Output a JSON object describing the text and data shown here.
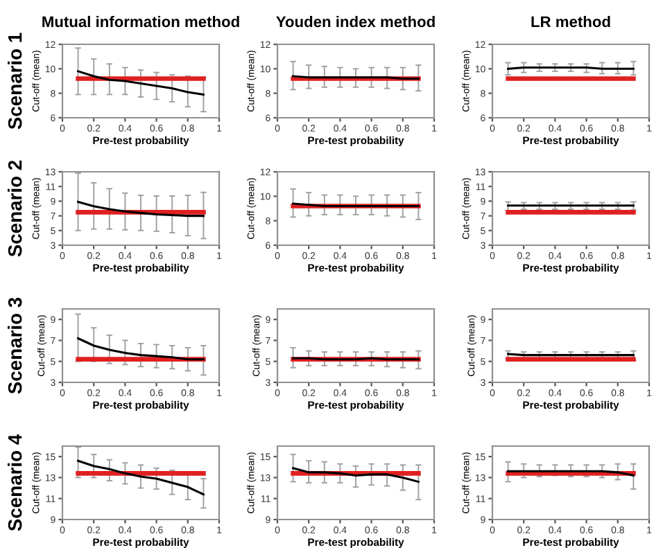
{
  "chart_data": [
    {
      "type": "line",
      "title": "Mutual information method",
      "annotations": [
        "Scenario 1"
      ],
      "xlabel": "Pre-test probability",
      "ylabel": "Cut-off (mean)",
      "x": [
        0.1,
        0.2,
        0.3,
        0.4,
        0.5,
        0.6,
        0.7,
        0.8,
        0.9
      ],
      "xlim": [
        0,
        1
      ],
      "xticks": [
        0,
        0.2,
        0.4,
        0.6,
        0.8,
        1
      ],
      "ylim": [
        6,
        12
      ],
      "yticks": [
        6,
        8,
        10,
        12
      ],
      "grid": false,
      "marker": "none",
      "line_style": "solid",
      "series": [
        {
          "color": "#000000",
          "values": [
            9.8,
            9.4,
            9.1,
            9.0,
            8.8,
            8.6,
            8.4,
            8.1,
            7.9
          ],
          "errors": [
            [
              7.9,
              11.7
            ],
            [
              7.9,
              10.8
            ],
            [
              7.9,
              10.4
            ],
            [
              7.9,
              10.1
            ],
            [
              7.7,
              9.9
            ],
            [
              7.5,
              9.7
            ],
            [
              7.3,
              9.5
            ],
            [
              6.9,
              9.4
            ],
            [
              6.5,
              9.3
            ]
          ]
        },
        {
          "color": "#e02020",
          "values": [
            9.2,
            9.2,
            9.2,
            9.2,
            9.2,
            9.2,
            9.2,
            9.2,
            9.2
          ]
        }
      ]
    },
    {
      "type": "line",
      "title": "Youden index method",
      "xlabel": "Pre-test probability",
      "ylabel": "Cut-off (mean)",
      "x": [
        0.1,
        0.2,
        0.3,
        0.4,
        0.5,
        0.6,
        0.7,
        0.8,
        0.9
      ],
      "xlim": [
        0,
        1
      ],
      "xticks": [
        0,
        0.2,
        0.4,
        0.6,
        0.8,
        1
      ],
      "ylim": [
        6,
        12
      ],
      "yticks": [
        6,
        8,
        10,
        12
      ],
      "grid": false,
      "marker": "none",
      "line_style": "solid",
      "series": [
        {
          "color": "#000000",
          "values": [
            9.4,
            9.3,
            9.3,
            9.3,
            9.3,
            9.3,
            9.3,
            9.2,
            9.2
          ],
          "errors": [
            [
              8.3,
              10.6
            ],
            [
              8.4,
              10.3
            ],
            [
              8.5,
              10.2
            ],
            [
              8.5,
              10.1
            ],
            [
              8.5,
              10.0
            ],
            [
              8.5,
              10.1
            ],
            [
              8.4,
              10.1
            ],
            [
              8.3,
              10.1
            ],
            [
              8.2,
              10.3
            ]
          ]
        },
        {
          "color": "#e02020",
          "values": [
            9.2,
            9.2,
            9.2,
            9.2,
            9.2,
            9.2,
            9.2,
            9.2,
            9.2
          ]
        }
      ]
    },
    {
      "type": "line",
      "title": "LR method",
      "xlabel": "Pre-test probability",
      "ylabel": "Cut-off (mean)",
      "x": [
        0.1,
        0.2,
        0.3,
        0.4,
        0.5,
        0.6,
        0.7,
        0.8,
        0.9
      ],
      "xlim": [
        0,
        1
      ],
      "xticks": [
        0,
        0.2,
        0.4,
        0.6,
        0.8,
        1
      ],
      "ylim": [
        6,
        12
      ],
      "yticks": [
        6,
        8,
        10,
        12
      ],
      "grid": false,
      "marker": "none",
      "line_style": "solid",
      "series": [
        {
          "color": "#000000",
          "values": [
            10.0,
            10.1,
            10.1,
            10.1,
            10.1,
            10.1,
            10.0,
            10.0,
            10.0
          ],
          "errors": [
            [
              9.5,
              10.5
            ],
            [
              9.7,
              10.5
            ],
            [
              9.8,
              10.4
            ],
            [
              9.8,
              10.4
            ],
            [
              9.8,
              10.4
            ],
            [
              9.7,
              10.4
            ],
            [
              9.6,
              10.5
            ],
            [
              9.6,
              10.5
            ],
            [
              9.5,
              10.6
            ]
          ]
        },
        {
          "color": "#e02020",
          "values": [
            9.2,
            9.2,
            9.2,
            9.2,
            9.2,
            9.2,
            9.2,
            9.2,
            9.2
          ]
        }
      ]
    },
    {
      "type": "line",
      "annotations": [
        "Scenario 2"
      ],
      "xlabel": "Pre-test probability",
      "ylabel": "Cut-off (mean)",
      "x": [
        0.1,
        0.2,
        0.3,
        0.4,
        0.5,
        0.6,
        0.7,
        0.8,
        0.9
      ],
      "xlim": [
        0,
        1
      ],
      "xticks": [
        0,
        0.2,
        0.4,
        0.6,
        0.8,
        1
      ],
      "ylim": [
        3,
        13
      ],
      "yticks": [
        3,
        5,
        7,
        9,
        11,
        13
      ],
      "grid": false,
      "marker": "none",
      "line_style": "solid",
      "series": [
        {
          "color": "#000000",
          "values": [
            8.9,
            8.3,
            7.9,
            7.6,
            7.4,
            7.2,
            7.1,
            7.0,
            7.0
          ],
          "errors": [
            [
              5.0,
              12.8
            ],
            [
              5.2,
              11.5
            ],
            [
              5.2,
              10.7
            ],
            [
              5.1,
              10.1
            ],
            [
              5.0,
              9.8
            ],
            [
              4.9,
              9.7
            ],
            [
              4.7,
              9.7
            ],
            [
              4.3,
              9.8
            ],
            [
              3.9,
              10.2
            ]
          ]
        },
        {
          "color": "#e02020",
          "values": [
            7.5,
            7.5,
            7.5,
            7.5,
            7.5,
            7.5,
            7.5,
            7.5,
            7.5
          ]
        }
      ]
    },
    {
      "type": "line",
      "xlabel": "Pre-test probability",
      "ylabel": "Cut-off (mean)",
      "x": [
        0.1,
        0.2,
        0.3,
        0.4,
        0.5,
        0.6,
        0.7,
        0.8,
        0.9
      ],
      "xlim": [
        0,
        1
      ],
      "xticks": [
        0,
        0.2,
        0.4,
        0.6,
        0.8,
        1
      ],
      "ylim": [
        6,
        12
      ],
      "yticks": [
        6,
        8,
        10,
        12
      ],
      "grid": false,
      "marker": "none",
      "line_style": "solid",
      "series": [
        {
          "color": "#000000",
          "values": [
            9.4,
            9.3,
            9.2,
            9.2,
            9.2,
            9.2,
            9.2,
            9.2,
            9.2
          ],
          "errors": [
            [
              8.3,
              10.6
            ],
            [
              8.4,
              10.3
            ],
            [
              8.5,
              10.1
            ],
            [
              8.5,
              10.1
            ],
            [
              8.5,
              10.0
            ],
            [
              8.5,
              10.1
            ],
            [
              8.4,
              10.1
            ],
            [
              8.3,
              10.1
            ],
            [
              8.1,
              10.3
            ]
          ]
        },
        {
          "color": "#e02020",
          "values": [
            9.2,
            9.2,
            9.2,
            9.2,
            9.2,
            9.2,
            9.2,
            9.2,
            9.2
          ]
        }
      ]
    },
    {
      "type": "line",
      "xlabel": "Pre-test probability",
      "ylabel": "Cut-off (mean)",
      "x": [
        0.1,
        0.2,
        0.3,
        0.4,
        0.5,
        0.6,
        0.7,
        0.8,
        0.9
      ],
      "xlim": [
        0,
        1
      ],
      "xticks": [
        0,
        0.2,
        0.4,
        0.6,
        0.8,
        1
      ],
      "ylim": [
        3,
        13
      ],
      "yticks": [
        3,
        5,
        7,
        9,
        11,
        13
      ],
      "grid": false,
      "marker": "none",
      "line_style": "solid",
      "series": [
        {
          "color": "#000000",
          "values": [
            8.4,
            8.4,
            8.4,
            8.4,
            8.4,
            8.4,
            8.4,
            8.4,
            8.4
          ],
          "errors": [
            [
              7.7,
              8.9
            ],
            [
              7.9,
              8.8
            ],
            [
              7.9,
              8.8
            ],
            [
              7.9,
              8.8
            ],
            [
              7.9,
              8.8
            ],
            [
              7.9,
              8.8
            ],
            [
              7.9,
              8.8
            ],
            [
              7.9,
              8.8
            ],
            [
              7.8,
              8.9
            ]
          ]
        },
        {
          "color": "#e02020",
          "values": [
            7.5,
            7.5,
            7.5,
            7.5,
            7.5,
            7.5,
            7.5,
            7.5,
            7.5
          ]
        }
      ]
    },
    {
      "type": "line",
      "annotations": [
        "Scenario 3"
      ],
      "xlabel": "Pre-test probability",
      "ylabel": "Cut-off (mean)",
      "x": [
        0.1,
        0.2,
        0.3,
        0.4,
        0.5,
        0.6,
        0.7,
        0.8,
        0.9
      ],
      "xlim": [
        0,
        1
      ],
      "xticks": [
        0,
        0.2,
        0.4,
        0.6,
        0.8,
        1
      ],
      "ylim": [
        3,
        10
      ],
      "yticks": [
        3,
        5,
        7,
        9
      ],
      "grid": false,
      "marker": "none",
      "line_style": "solid",
      "series": [
        {
          "color": "#000000",
          "values": [
            7.2,
            6.5,
            6.1,
            5.8,
            5.6,
            5.5,
            5.4,
            5.2,
            5.2
          ],
          "errors": [
            [
              5.0,
              9.5
            ],
            [
              5.0,
              8.2
            ],
            [
              4.8,
              7.5
            ],
            [
              4.7,
              7.0
            ],
            [
              4.5,
              6.7
            ],
            [
              4.4,
              6.6
            ],
            [
              4.3,
              6.5
            ],
            [
              4.1,
              6.3
            ],
            [
              3.7,
              6.5
            ]
          ]
        },
        {
          "color": "#e02020",
          "values": [
            5.2,
            5.2,
            5.2,
            5.2,
            5.2,
            5.2,
            5.2,
            5.2,
            5.2
          ]
        }
      ]
    },
    {
      "type": "line",
      "xlabel": "Pre-test probability",
      "ylabel": "Cut-off (mean)",
      "x": [
        0.1,
        0.2,
        0.3,
        0.4,
        0.5,
        0.6,
        0.7,
        0.8,
        0.9
      ],
      "xlim": [
        0,
        1
      ],
      "xticks": [
        0,
        0.2,
        0.4,
        0.6,
        0.8,
        1
      ],
      "ylim": [
        3,
        10
      ],
      "yticks": [
        3,
        5,
        7,
        9
      ],
      "grid": false,
      "marker": "none",
      "line_style": "solid",
      "series": [
        {
          "color": "#000000",
          "values": [
            5.3,
            5.3,
            5.2,
            5.2,
            5.2,
            5.3,
            5.2,
            5.2,
            5.2
          ],
          "errors": [
            [
              4.4,
              6.3
            ],
            [
              4.6,
              6.0
            ],
            [
              4.6,
              5.9
            ],
            [
              4.6,
              5.9
            ],
            [
              4.6,
              5.9
            ],
            [
              4.6,
              5.9
            ],
            [
              4.5,
              5.9
            ],
            [
              4.4,
              5.9
            ],
            [
              4.3,
              6.0
            ]
          ]
        },
        {
          "color": "#e02020",
          "values": [
            5.2,
            5.2,
            5.2,
            5.2,
            5.2,
            5.2,
            5.2,
            5.2,
            5.2
          ]
        }
      ]
    },
    {
      "type": "line",
      "xlabel": "Pre-test probability",
      "ylabel": "Cut-off (mean)",
      "x": [
        0.1,
        0.2,
        0.3,
        0.4,
        0.5,
        0.6,
        0.7,
        0.8,
        0.9
      ],
      "xlim": [
        0,
        1
      ],
      "xticks": [
        0,
        0.2,
        0.4,
        0.6,
        0.8,
        1
      ],
      "ylim": [
        3,
        10
      ],
      "yticks": [
        3,
        5,
        7,
        9
      ],
      "grid": false,
      "marker": "none",
      "line_style": "solid",
      "series": [
        {
          "color": "#000000",
          "values": [
            5.7,
            5.6,
            5.6,
            5.6,
            5.6,
            5.6,
            5.6,
            5.6,
            5.6
          ],
          "errors": [
            [
              5.3,
              6.0
            ],
            [
              5.3,
              5.9
            ],
            [
              5.3,
              5.9
            ],
            [
              5.3,
              5.9
            ],
            [
              5.3,
              5.9
            ],
            [
              5.3,
              5.9
            ],
            [
              5.3,
              5.9
            ],
            [
              5.2,
              5.9
            ],
            [
              5.1,
              6.0
            ]
          ]
        },
        {
          "color": "#e02020",
          "values": [
            5.2,
            5.2,
            5.2,
            5.2,
            5.2,
            5.2,
            5.2,
            5.2,
            5.2
          ]
        }
      ]
    },
    {
      "type": "line",
      "annotations": [
        "Scenario 4"
      ],
      "xlabel": "Pre-test probability",
      "ylabel": "Cut-off (mean)",
      "x": [
        0.1,
        0.2,
        0.3,
        0.4,
        0.5,
        0.6,
        0.7,
        0.8,
        0.9
      ],
      "xlim": [
        0,
        1
      ],
      "xticks": [
        0,
        0.2,
        0.4,
        0.6,
        0.8,
        1
      ],
      "ylim": [
        9,
        16
      ],
      "yticks": [
        9,
        11,
        13,
        15
      ],
      "grid": false,
      "marker": "none",
      "line_style": "solid",
      "series": [
        {
          "color": "#000000",
          "values": [
            14.6,
            14.1,
            13.8,
            13.4,
            13.1,
            12.9,
            12.5,
            12.1,
            11.4
          ],
          "errors": [
            [
              13.0,
              15.9
            ],
            [
              13.0,
              15.2
            ],
            [
              12.7,
              14.7
            ],
            [
              12.4,
              14.4
            ],
            [
              12.0,
              14.2
            ],
            [
              11.9,
              13.9
            ],
            [
              11.4,
              13.7
            ],
            [
              10.9,
              13.5
            ],
            [
              10.1,
              12.9
            ]
          ]
        },
        {
          "color": "#e02020",
          "values": [
            13.4,
            13.4,
            13.4,
            13.4,
            13.4,
            13.4,
            13.4,
            13.4,
            13.4
          ]
        }
      ]
    },
    {
      "type": "line",
      "xlabel": "Pre-test probability",
      "ylabel": "Cut-off (mean)",
      "x": [
        0.1,
        0.2,
        0.3,
        0.4,
        0.5,
        0.6,
        0.7,
        0.8,
        0.9
      ],
      "xlim": [
        0,
        1
      ],
      "xticks": [
        0,
        0.2,
        0.4,
        0.6,
        0.8,
        1
      ],
      "ylim": [
        9,
        16
      ],
      "yticks": [
        9,
        11,
        13,
        15
      ],
      "grid": false,
      "marker": "none",
      "line_style": "solid",
      "series": [
        {
          "color": "#000000",
          "values": [
            13.9,
            13.5,
            13.5,
            13.4,
            13.2,
            13.3,
            13.3,
            13.0,
            12.6
          ],
          "errors": [
            [
              12.6,
              15.2
            ],
            [
              12.5,
              14.6
            ],
            [
              12.5,
              14.5
            ],
            [
              12.5,
              14.3
            ],
            [
              12.1,
              14.1
            ],
            [
              12.3,
              14.3
            ],
            [
              12.2,
              14.3
            ],
            [
              11.8,
              14.2
            ],
            [
              10.9,
              14.2
            ]
          ]
        },
        {
          "color": "#e02020",
          "values": [
            13.4,
            13.4,
            13.4,
            13.4,
            13.4,
            13.4,
            13.4,
            13.4,
            13.4
          ]
        }
      ]
    },
    {
      "type": "line",
      "xlabel": "Pre-test probability",
      "ylabel": "Cut-off (mean)",
      "x": [
        0.1,
        0.2,
        0.3,
        0.4,
        0.5,
        0.6,
        0.7,
        0.8,
        0.9
      ],
      "xlim": [
        0,
        1
      ],
      "xticks": [
        0,
        0.2,
        0.4,
        0.6,
        0.8,
        1
      ],
      "ylim": [
        9,
        16
      ],
      "yticks": [
        9,
        11,
        13,
        15
      ],
      "grid": false,
      "marker": "none",
      "line_style": "solid",
      "series": [
        {
          "color": "#000000",
          "values": [
            13.6,
            13.6,
            13.6,
            13.6,
            13.6,
            13.6,
            13.6,
            13.5,
            13.2
          ],
          "errors": [
            [
              12.6,
              14.5
            ],
            [
              13.0,
              14.3
            ],
            [
              13.1,
              14.2
            ],
            [
              13.2,
              14.2
            ],
            [
              13.1,
              14.2
            ],
            [
              13.1,
              14.2
            ],
            [
              13.0,
              14.2
            ],
            [
              12.8,
              14.3
            ],
            [
              11.9,
              14.3
            ]
          ]
        },
        {
          "color": "#e02020",
          "values": [
            13.4,
            13.4,
            13.4,
            13.4,
            13.4,
            13.4,
            13.4,
            13.4,
            13.4
          ]
        }
      ]
    }
  ]
}
